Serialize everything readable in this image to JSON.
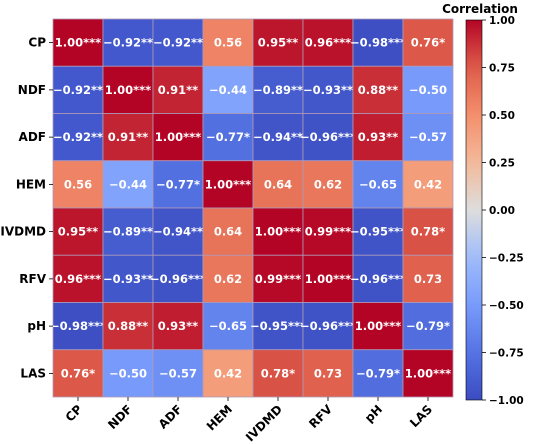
{
  "chart_data": {
    "type": "heatmap",
    "x_labels": [
      "CP",
      "NDF",
      "ADF",
      "HEM",
      "IVDMD",
      "RFV",
      "pH",
      "LAS"
    ],
    "y_labels": [
      "CP",
      "NDF",
      "ADF",
      "HEM",
      "IVDMD",
      "RFV",
      "pH",
      "LAS"
    ],
    "values": [
      [
        1.0,
        -0.92,
        -0.92,
        0.56,
        0.95,
        0.96,
        -0.98,
        0.76
      ],
      [
        -0.92,
        1.0,
        0.91,
        -0.44,
        -0.89,
        -0.93,
        0.88,
        -0.5
      ],
      [
        -0.92,
        0.91,
        1.0,
        -0.77,
        -0.94,
        -0.96,
        0.93,
        -0.57
      ],
      [
        0.56,
        -0.44,
        -0.77,
        1.0,
        0.64,
        0.62,
        -0.65,
        0.42
      ],
      [
        0.95,
        -0.89,
        -0.94,
        0.64,
        1.0,
        0.99,
        -0.95,
        0.78
      ],
      [
        0.96,
        -0.93,
        -0.96,
        0.62,
        0.99,
        1.0,
        -0.96,
        0.73
      ],
      [
        -0.98,
        0.88,
        0.93,
        -0.65,
        -0.95,
        -0.96,
        1.0,
        -0.79
      ],
      [
        0.76,
        -0.5,
        -0.57,
        0.42,
        0.78,
        0.73,
        -0.79,
        1.0
      ]
    ],
    "annotations": [
      [
        "1.00***",
        "−0.92**",
        "−0.92**",
        "0.56",
        "0.95**",
        "0.96***",
        "−0.98***",
        "0.76*"
      ],
      [
        "−0.92**",
        "1.00***",
        "0.91**",
        "−0.44",
        "−0.89**",
        "−0.93**",
        "0.88**",
        "−0.50"
      ],
      [
        "−0.92**",
        "0.91**",
        "1.00***",
        "−0.77*",
        "−0.94**",
        "−0.96***",
        "0.93**",
        "−0.57"
      ],
      [
        "0.56",
        "−0.44",
        "−0.77*",
        "1.00***",
        "0.64",
        "0.62",
        "−0.65",
        "0.42"
      ],
      [
        "0.95**",
        "−0.89**",
        "−0.94**",
        "0.64",
        "1.00***",
        "0.99***",
        "−0.95***",
        "0.78*"
      ],
      [
        "0.96***",
        "−0.93**",
        "−0.96***",
        "0.62",
        "0.99***",
        "1.00***",
        "−0.96***",
        "0.73"
      ],
      [
        "−0.98***",
        "0.88**",
        "0.93**",
        "−0.65",
        "−0.95***",
        "−0.96***",
        "1.00***",
        "−0.79*"
      ],
      [
        "0.76*",
        "−0.50",
        "−0.57",
        "0.42",
        "0.78*",
        "0.73",
        "−0.79*",
        "1.00***"
      ]
    ],
    "colormap": "coolwarm",
    "vmin": -1.0,
    "vmax": 1.0,
    "colorbar": {
      "title": "Correlation",
      "ticks": [
        1.0,
        0.75,
        0.5,
        0.25,
        0.0,
        -0.25,
        -0.5,
        -0.75,
        -1.0
      ],
      "tick_labels": [
        "1.00",
        "0.75",
        "0.50",
        "0.25",
        "0.00",
        "−0.25",
        "−0.50",
        "−0.75",
        "−1.00"
      ]
    },
    "title": "",
    "xlabel": "",
    "ylabel": ""
  }
}
